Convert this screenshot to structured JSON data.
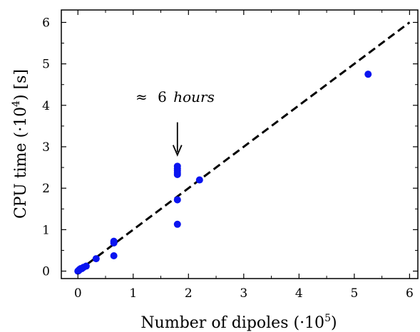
{
  "chart_data": {
    "type": "scatter",
    "xlabel": "Number of dipoles (·10",
    "xlabel_sup": "5",
    "xlabel_end": ")",
    "ylabel": "CPU time (·10",
    "ylabel_sup": "4",
    "ylabel_end": ") [s]",
    "xlim": [
      -0.3,
      6.15
    ],
    "ylim": [
      -0.18,
      6.3
    ],
    "xticks": [
      "0",
      "1",
      "2",
      "3",
      "4",
      "5",
      "6"
    ],
    "yticks": [
      "0",
      "1",
      "2",
      "3",
      "4",
      "5",
      "6"
    ],
    "grid": false,
    "series": [
      {
        "marker_color": "#0a14f0",
        "points": [
          [
            0.0,
            0.0
          ],
          [
            0.01,
            0.01
          ],
          [
            0.02,
            0.02
          ],
          [
            0.03,
            0.04
          ],
          [
            0.05,
            0.06
          ],
          [
            0.07,
            0.06
          ],
          [
            0.1,
            0.09
          ],
          [
            0.15,
            0.12
          ],
          [
            0.33,
            0.3
          ],
          [
            0.65,
            0.68
          ],
          [
            0.65,
            0.72
          ],
          [
            0.65,
            0.37
          ],
          [
            1.8,
            2.53
          ],
          [
            1.8,
            2.47
          ],
          [
            1.8,
            2.42
          ],
          [
            1.8,
            2.37
          ],
          [
            1.8,
            2.33
          ],
          [
            1.8,
            1.72
          ],
          [
            1.8,
            1.13
          ],
          [
            2.2,
            2.2
          ],
          [
            5.25,
            4.75
          ]
        ]
      }
    ],
    "fit_line": {
      "style": "dashed",
      "color": "#000000",
      "x": [
        0,
        6
      ],
      "y": [
        0,
        6
      ]
    },
    "annotation": {
      "approx": "≈",
      "value": "6",
      "unit": "hours",
      "arrow_to": [
        1.8,
        2.8
      ]
    }
  }
}
